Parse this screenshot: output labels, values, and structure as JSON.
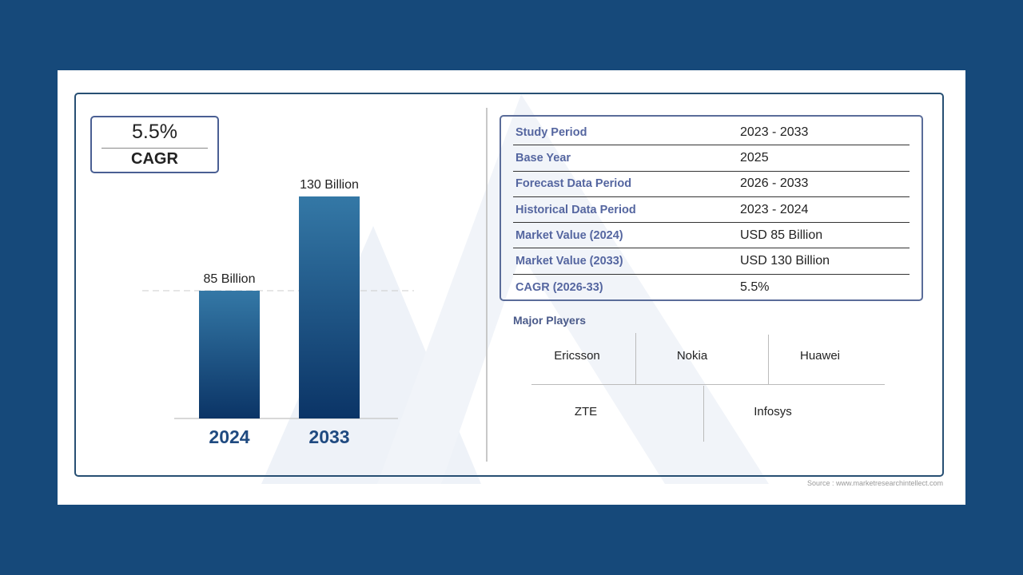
{
  "cagr_badge": {
    "value": "5.5%",
    "label": "CAGR"
  },
  "chart_data": {
    "type": "bar",
    "categories": [
      "2024",
      "2033"
    ],
    "values": [
      85,
      130
    ],
    "data_labels": [
      "85 Billion",
      "130 Billion"
    ],
    "unit": "Billion",
    "grid": false,
    "colors": {
      "bar_top": "#3478a6",
      "bar_bottom": "#0b3466",
      "category_label": "#1f4a80"
    }
  },
  "table": {
    "rows": [
      {
        "label": "Study Period",
        "value": "2023 - 2033"
      },
      {
        "label": "Base Year",
        "value": "2025"
      },
      {
        "label": "Forecast Data Period",
        "value": "2026 - 2033"
      },
      {
        "label": "Historical Data Period",
        "value": "2023 - 2024"
      },
      {
        "label": "Market Value (2024)",
        "value": "USD 85 Billion"
      },
      {
        "label": "Market Value (2033)",
        "value": "USD 130 Billion"
      },
      {
        "label": "CAGR (2026-33)",
        "value": "5.5%"
      }
    ]
  },
  "major_players": {
    "title": "Major Players",
    "players": [
      "Ericsson",
      "Nokia",
      "Huawei",
      "ZTE",
      "Infosys"
    ]
  },
  "source": "Source : www.marketresearchintellect.com"
}
